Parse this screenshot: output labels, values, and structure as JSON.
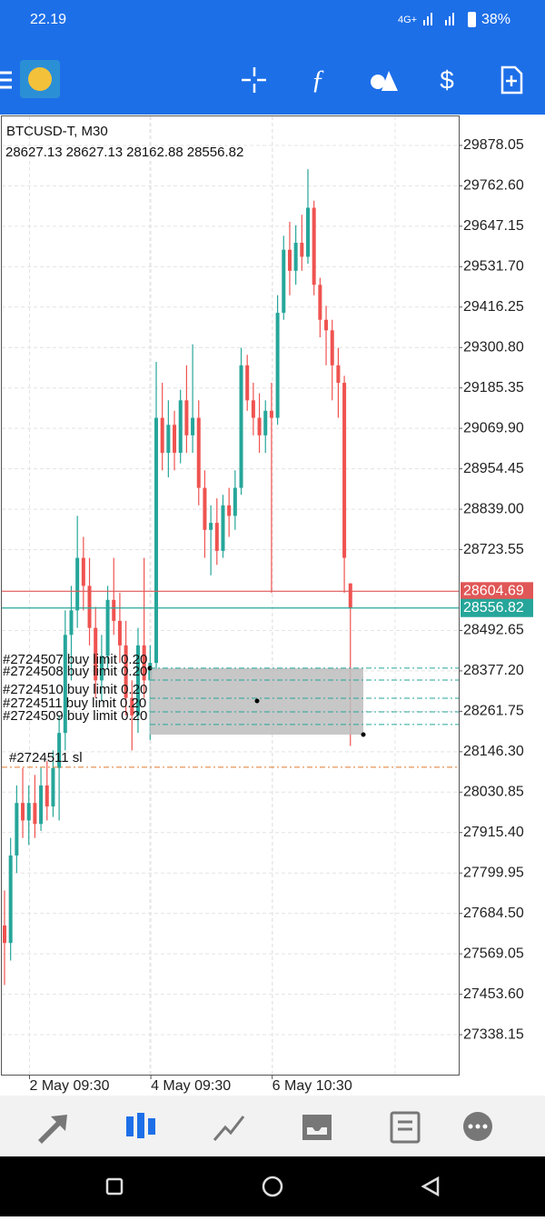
{
  "status_bar": {
    "time": "22.19",
    "network": "4G+",
    "battery": "38%"
  },
  "chart_data": {
    "type": "candlestick",
    "title": "BTCUSD-T, M30",
    "candles": [
      [
        27650,
        27750,
        27480,
        27600
      ],
      [
        27600,
        27900,
        27550,
        27850
      ],
      [
        27850,
        28050,
        27800,
        28000
      ],
      [
        28000,
        28100,
        27900,
        27950
      ],
      [
        27950,
        28050,
        27880,
        28000
      ],
      [
        28000,
        28080,
        27900,
        27940
      ],
      [
        27940,
        28100,
        27920,
        28050
      ],
      [
        28050,
        28120,
        27950,
        27990
      ],
      [
        27990,
        28150,
        27960,
        28100
      ],
      [
        28100,
        28250,
        27950,
        28200
      ],
      [
        28200,
        28550,
        28150,
        28480
      ],
      [
        28480,
        28620,
        28350,
        28550
      ],
      [
        28550,
        28820,
        28500,
        28700
      ],
      [
        28700,
        28760,
        28550,
        28620
      ],
      [
        28620,
        28700,
        28450,
        28500
      ],
      [
        28500,
        28560,
        28300,
        28350
      ],
      [
        28350,
        28480,
        28290,
        28420
      ],
      [
        28420,
        28620,
        28380,
        28580
      ],
      [
        28580,
        28700,
        28480,
        28520
      ],
      [
        28520,
        28600,
        28400,
        28450
      ],
      [
        28450,
        28520,
        28250,
        28300
      ],
      [
        28300,
        28350,
        28150,
        28250
      ],
      [
        28250,
        28500,
        28200,
        28450
      ],
      [
        28450,
        28700,
        28300,
        28350
      ],
      [
        28350,
        28450,
        28180,
        28400
      ],
      [
        28400,
        29260,
        28380,
        29100
      ],
      [
        29100,
        29200,
        28950,
        29000
      ],
      [
        29000,
        29150,
        28930,
        29080
      ],
      [
        29080,
        29120,
        28950,
        29000
      ],
      [
        29000,
        29180,
        28970,
        29150
      ],
      [
        29150,
        29250,
        29000,
        29050
      ],
      [
        29050,
        29310,
        29000,
        29100
      ],
      [
        29100,
        29150,
        28850,
        28900
      ],
      [
        28900,
        28950,
        28700,
        28780
      ],
      [
        28780,
        28850,
        28650,
        28800
      ],
      [
        28800,
        28870,
        28680,
        28720
      ],
      [
        28720,
        28880,
        28700,
        28850
      ],
      [
        28850,
        28900,
        28760,
        28820
      ],
      [
        28820,
        28950,
        28780,
        28900
      ],
      [
        28900,
        29300,
        28880,
        29250
      ],
      [
        29250,
        29280,
        29120,
        29150
      ],
      [
        29150,
        29200,
        29050,
        29100
      ],
      [
        29100,
        29170,
        29000,
        29050
      ],
      [
        29050,
        29150,
        29000,
        29120
      ],
      [
        29120,
        29200,
        28600,
        29100
      ],
      [
        29100,
        29450,
        29080,
        29400
      ],
      [
        29400,
        29620,
        29380,
        29580
      ],
      [
        29580,
        29660,
        29450,
        29520
      ],
      [
        29520,
        29650,
        29480,
        29600
      ],
      [
        29600,
        29680,
        29520,
        29560
      ],
      [
        29560,
        29810,
        29540,
        29700
      ],
      [
        29700,
        29720,
        29450,
        29480
      ],
      [
        29480,
        29500,
        29330,
        29380
      ],
      [
        29380,
        29420,
        29250,
        29350
      ],
      [
        29350,
        29380,
        29150,
        29250
      ],
      [
        29250,
        29300,
        29100,
        29200
      ],
      [
        29200,
        29220,
        28600,
        28700
      ],
      [
        28627.13,
        28627.13,
        28162.88,
        28556.82
      ]
    ],
    "up_color": "#26a69a",
    "down_color": "#ef5350",
    "ylim": [
      27224,
      29961
    ],
    "yticks": [
      29878.05,
      {
        "value": 29762.6,
        "label": "29762.60"
      },
      29647.15,
      {
        "value": 29531.7,
        "label": "29531.70"
      },
      29416.25,
      {
        "value": 29300.8,
        "label": "29300.80"
      },
      29185.35,
      {
        "value": 29069.9,
        "label": "29069.90"
      },
      28954.45,
      {
        "value": 28839,
        "label": "28839.00"
      },
      28723.55,
      28492.65,
      {
        "value": 28377.2,
        "label": "28377.20"
      },
      28261.75,
      {
        "value": 28146.3,
        "label": "28146.30"
      },
      28030.85,
      {
        "value": 27915.4,
        "label": "27915.40"
      },
      27799.95,
      {
        "value": 27684.5,
        "label": "27684.50"
      },
      27569.05,
      {
        "value": 27453.6,
        "label": "27453.60"
      },
      27338.15
    ],
    "xticks": [
      "2 May 09:30",
      "4 May 09:30",
      "6 May 10:30"
    ],
    "grid": true,
    "ask": 28604.69,
    "ask_color": "#e05757",
    "bid": 28556.82,
    "bid_color": "#26a69a",
    "orders": [
      {
        "label": "#2724507 buy limit 0.20",
        "price": 28385
      },
      {
        "label": "#2724508 buy limit 0.20",
        "price": 28351
      },
      {
        "label": "#2724510 buy limit 0.20",
        "price": 28299
      },
      {
        "label": "#2724511 buy limit 0.20",
        "price": 28260
      },
      {
        "label": "#2724509 buy limit 0.20",
        "price": 28224
      }
    ],
    "stop_loss": {
      "label": "#2724511 sl",
      "price": 28102
    }
  }
}
